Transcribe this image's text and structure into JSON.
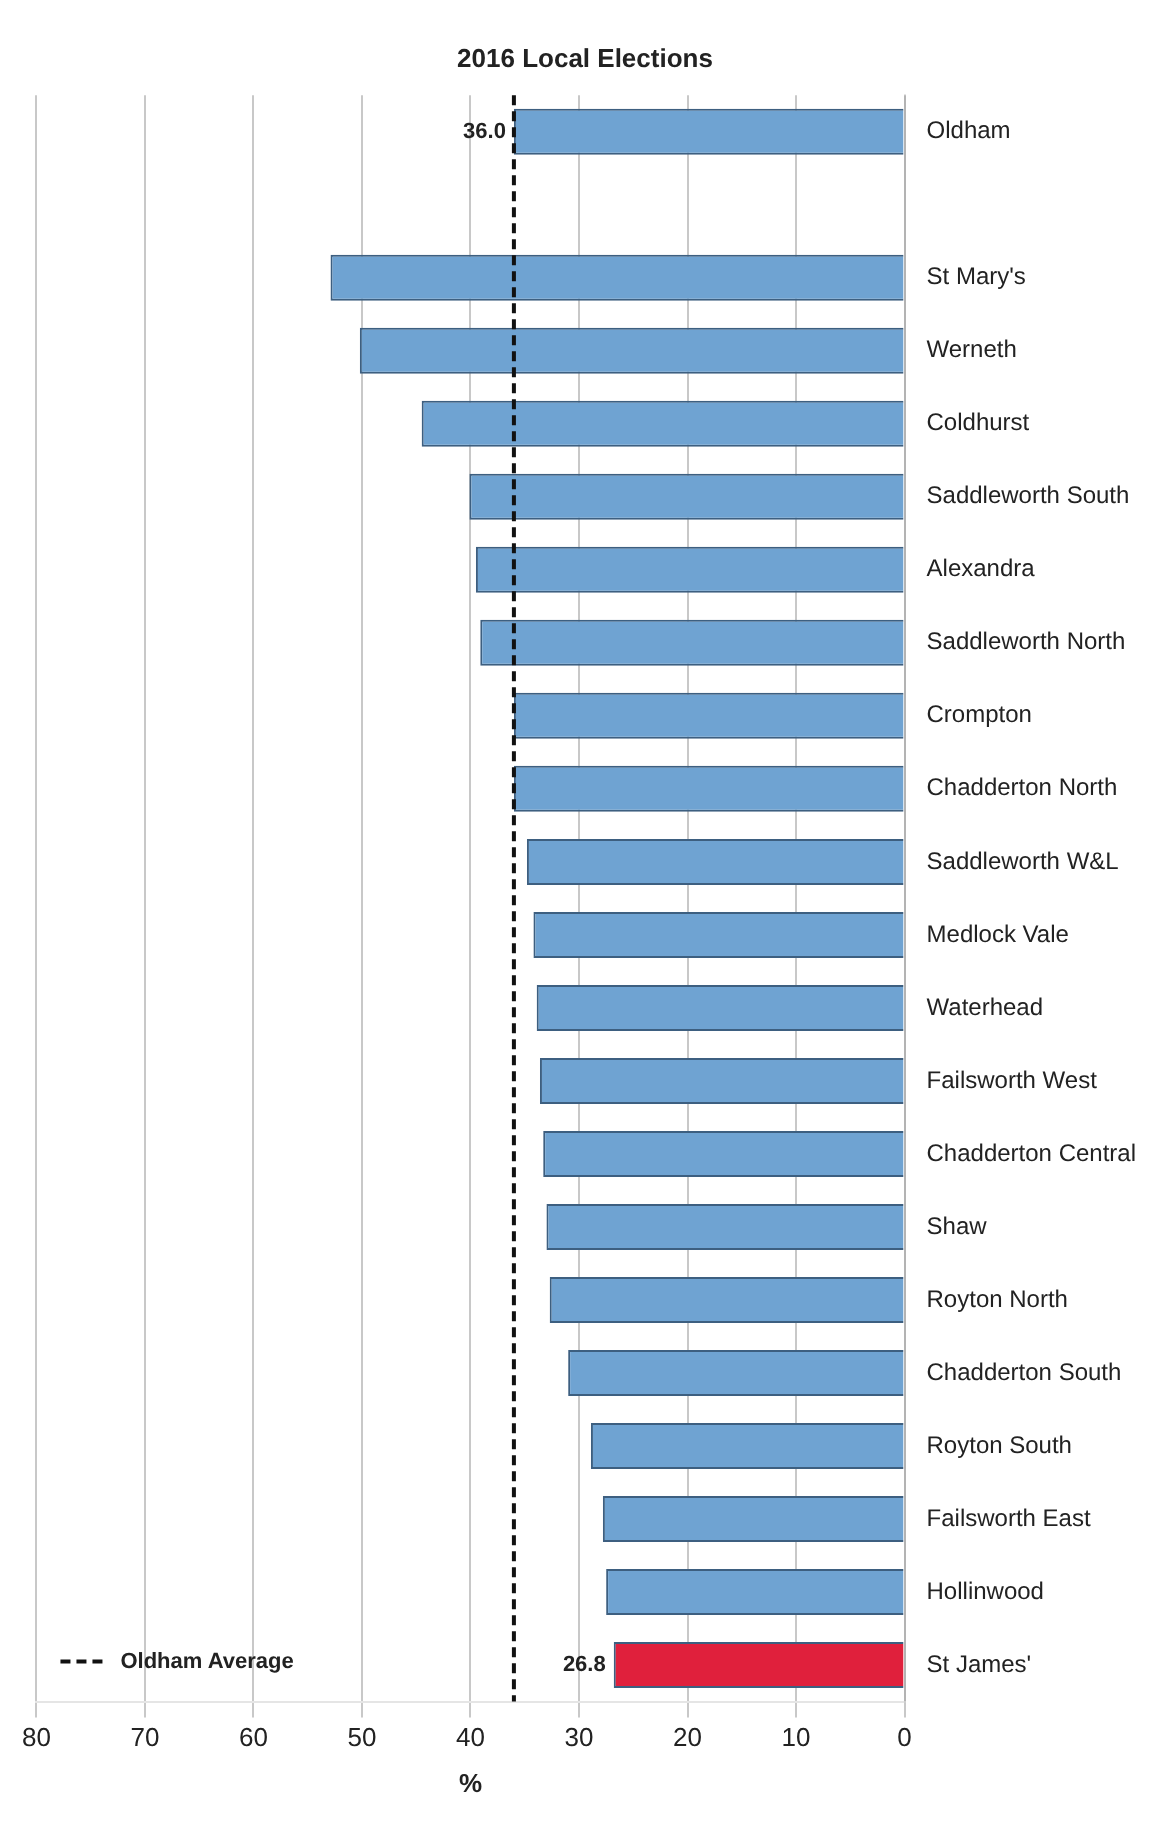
{
  "chart_data": {
    "type": "bar",
    "orientation": "horizontal",
    "title": "2016 Local Elections",
    "xlabel": "%",
    "categories": [
      "Oldham",
      null,
      "St Mary's",
      "Werneth",
      "Coldhurst",
      "Saddleworth South",
      "Alexandra",
      "Saddleworth North",
      "Crompton",
      "Chadderton North",
      "Saddleworth W&L",
      "Medlock Vale",
      "Waterhead",
      "Failsworth West",
      "Chadderton Central",
      "Shaw",
      "Royton North",
      "Chadderton South",
      "Royton South",
      "Failsworth East",
      "Hollinwood",
      "St James'"
    ],
    "values": [
      36.0,
      null,
      52.9,
      50.2,
      44.5,
      40.1,
      39.5,
      39.1,
      36.0,
      36.0,
      34.8,
      34.2,
      33.9,
      33.6,
      33.3,
      33.0,
      32.7,
      31.0,
      28.9,
      27.8,
      27.5,
      26.8
    ],
    "colors": [
      "#6fa3d2",
      "#6fa3d2",
      "#6fa3d2",
      "#6fa3d2",
      "#6fa3d2",
      "#6fa3d2",
      "#6fa3d2",
      "#6fa3d2",
      "#6fa3d2",
      "#6fa3d2",
      "#6fa3d2",
      "#6fa3d2",
      "#6fa3d2",
      "#6fa3d2",
      "#6fa3d2",
      "#6fa3d2",
      "#6fa3d2",
      "#6fa3d2",
      "#6fa3d2",
      "#6fa3d2",
      "#6fa3d2",
      "#e0203c"
    ],
    "value_labels": [
      "36.0",
      null,
      null,
      null,
      null,
      null,
      null,
      null,
      null,
      null,
      null,
      null,
      null,
      null,
      null,
      null,
      null,
      null,
      null,
      null,
      null,
      "26.8"
    ],
    "xlim": [
      80,
      0
    ],
    "xticks": [
      80,
      70,
      60,
      50,
      40,
      30,
      20,
      10,
      0
    ],
    "grid": "x",
    "ref_lines": [
      {
        "axis": "x",
        "value": 36.0,
        "label": "Oldham Average",
        "color": "#111111",
        "line_style": "dashed"
      }
    ]
  }
}
